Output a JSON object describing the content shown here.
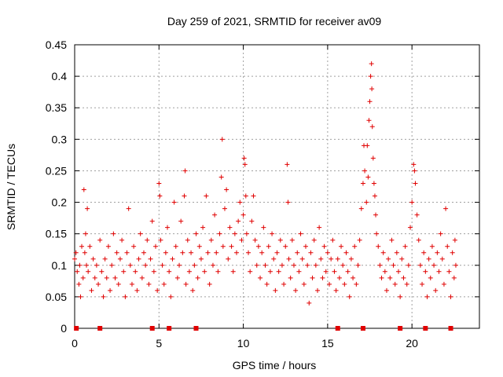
{
  "chart_data": {
    "type": "scatter",
    "title": "Day 259 of 2021, SRMTID for receiver av09",
    "xlabel": "GPS time / hours",
    "ylabel": "SRMTID / TECUs",
    "xlim": [
      0,
      24
    ],
    "ylim": [
      0,
      0.45
    ],
    "xticks": [
      "0",
      "5",
      "10",
      "15",
      "20"
    ],
    "xtick_values": [
      0,
      5,
      10,
      15,
      20
    ],
    "yticks": [
      "0",
      "0.05",
      "0.1",
      "0.15",
      "0.2",
      "0.25",
      "0.3",
      "0.35",
      "0.4",
      "0.45"
    ],
    "ytick_values": [
      0,
      0.05,
      0.1,
      0.15,
      0.2,
      0.25,
      0.3,
      0.35,
      0.4,
      0.45
    ],
    "grid": true,
    "marker": "+",
    "color": "#e00000",
    "zero_markers_x": [
      0.1,
      1.5,
      4.6,
      5.6,
      7.2,
      15.6,
      17.1,
      19.3,
      20.8,
      22.3
    ],
    "series": [
      {
        "name": "SRMTID",
        "points": [
          [
            0.0,
            0.11
          ],
          [
            0.08,
            0.12
          ],
          [
            0.15,
            0.09
          ],
          [
            0.25,
            0.07
          ],
          [
            0.3,
            0.1
          ],
          [
            0.35,
            0.05
          ],
          [
            0.42,
            0.13
          ],
          [
            0.5,
            0.08
          ],
          [
            0.55,
            0.22
          ],
          [
            0.6,
            0.12
          ],
          [
            0.65,
            0.15
          ],
          [
            0.7,
            0.1
          ],
          [
            0.75,
            0.19
          ],
          [
            0.8,
            0.09
          ],
          [
            0.9,
            0.13
          ],
          [
            1.0,
            0.06
          ],
          [
            1.1,
            0.11
          ],
          [
            1.2,
            0.08
          ],
          [
            1.3,
            0.1
          ],
          [
            1.4,
            0.07
          ],
          [
            1.5,
            0.14
          ],
          [
            1.6,
            0.09
          ],
          [
            1.7,
            0.05
          ],
          [
            1.8,
            0.11
          ],
          [
            1.9,
            0.08
          ],
          [
            2.0,
            0.13
          ],
          [
            2.1,
            0.06
          ],
          [
            2.2,
            0.1
          ],
          [
            2.3,
            0.15
          ],
          [
            2.4,
            0.08
          ],
          [
            2.5,
            0.12
          ],
          [
            2.6,
            0.07
          ],
          [
            2.7,
            0.11
          ],
          [
            2.8,
            0.14
          ],
          [
            2.9,
            0.09
          ],
          [
            3.0,
            0.05
          ],
          [
            3.1,
            0.12
          ],
          [
            3.2,
            0.19
          ],
          [
            3.3,
            0.1
          ],
          [
            3.4,
            0.07
          ],
          [
            3.5,
            0.13
          ],
          [
            3.6,
            0.09
          ],
          [
            3.7,
            0.06
          ],
          [
            3.8,
            0.11
          ],
          [
            3.9,
            0.15
          ],
          [
            4.0,
            0.08
          ],
          [
            4.1,
            0.12
          ],
          [
            4.2,
            0.1
          ],
          [
            4.3,
            0.14
          ],
          [
            4.4,
            0.07
          ],
          [
            4.5,
            0.11
          ],
          [
            4.6,
            0.17
          ],
          [
            4.7,
            0.09
          ],
          [
            4.8,
            0.13
          ],
          [
            4.9,
            0.06
          ],
          [
            5.0,
            0.23
          ],
          [
            5.05,
            0.21
          ],
          [
            5.1,
            0.14
          ],
          [
            5.2,
            0.1
          ],
          [
            5.3,
            0.07
          ],
          [
            5.4,
            0.12
          ],
          [
            5.5,
            0.16
          ],
          [
            5.6,
            0.09
          ],
          [
            5.7,
            0.05
          ],
          [
            5.8,
            0.11
          ],
          [
            5.9,
            0.2
          ],
          [
            6.0,
            0.13
          ],
          [
            6.1,
            0.08
          ],
          [
            6.2,
            0.1
          ],
          [
            6.3,
            0.17
          ],
          [
            6.4,
            0.12
          ],
          [
            6.5,
            0.21
          ],
          [
            6.55,
            0.25
          ],
          [
            6.6,
            0.07
          ],
          [
            6.7,
            0.14
          ],
          [
            6.8,
            0.09
          ],
          [
            6.9,
            0.12
          ],
          [
            7.0,
            0.06
          ],
          [
            7.1,
            0.1
          ],
          [
            7.2,
            0.15
          ],
          [
            7.3,
            0.08
          ],
          [
            7.4,
            0.13
          ],
          [
            7.5,
            0.11
          ],
          [
            7.6,
            0.16
          ],
          [
            7.7,
            0.09
          ],
          [
            7.8,
            0.21
          ],
          [
            7.9,
            0.12
          ],
          [
            8.0,
            0.07
          ],
          [
            8.1,
            0.14
          ],
          [
            8.2,
            0.1
          ],
          [
            8.3,
            0.18
          ],
          [
            8.4,
            0.12
          ],
          [
            8.5,
            0.09
          ],
          [
            8.6,
            0.15
          ],
          [
            8.7,
            0.24
          ],
          [
            8.75,
            0.3
          ],
          [
            8.8,
            0.13
          ],
          [
            8.9,
            0.19
          ],
          [
            9.0,
            0.22
          ],
          [
            9.1,
            0.11
          ],
          [
            9.2,
            0.16
          ],
          [
            9.3,
            0.13
          ],
          [
            9.4,
            0.09
          ],
          [
            9.5,
            0.15
          ],
          [
            9.6,
            0.12
          ],
          [
            9.7,
            0.17
          ],
          [
            9.8,
            0.2
          ],
          [
            9.9,
            0.14
          ],
          [
            10.0,
            0.18
          ],
          [
            10.05,
            0.27
          ],
          [
            10.1,
            0.26
          ],
          [
            10.15,
            0.21
          ],
          [
            10.2,
            0.15
          ],
          [
            10.3,
            0.12
          ],
          [
            10.4,
            0.09
          ],
          [
            10.5,
            0.17
          ],
          [
            10.6,
            0.21
          ],
          [
            10.7,
            0.14
          ],
          [
            10.8,
            0.1
          ],
          [
            10.9,
            0.13
          ],
          [
            11.0,
            0.08
          ],
          [
            11.1,
            0.12
          ],
          [
            11.2,
            0.16
          ],
          [
            11.3,
            0.1
          ],
          [
            11.4,
            0.07
          ],
          [
            11.5,
            0.13
          ],
          [
            11.6,
            0.09
          ],
          [
            11.7,
            0.15
          ],
          [
            11.8,
            0.11
          ],
          [
            11.9,
            0.06
          ],
          [
            12.0,
            0.12
          ],
          [
            12.1,
            0.09
          ],
          [
            12.2,
            0.14
          ],
          [
            12.3,
            0.1
          ],
          [
            12.4,
            0.07
          ],
          [
            12.5,
            0.13
          ],
          [
            12.6,
            0.26
          ],
          [
            12.65,
            0.2
          ],
          [
            12.7,
            0.11
          ],
          [
            12.8,
            0.08
          ],
          [
            12.9,
            0.14
          ],
          [
            13.0,
            0.1
          ],
          [
            13.1,
            0.06
          ],
          [
            13.2,
            0.12
          ],
          [
            13.3,
            0.09
          ],
          [
            13.4,
            0.15
          ],
          [
            13.5,
            0.11
          ],
          [
            13.6,
            0.07
          ],
          [
            13.7,
            0.13
          ],
          [
            13.8,
            0.1
          ],
          [
            13.9,
            0.04
          ],
          [
            14.0,
            0.12
          ],
          [
            14.1,
            0.08
          ],
          [
            14.2,
            0.14
          ],
          [
            14.3,
            0.1
          ],
          [
            14.4,
            0.06
          ],
          [
            14.5,
            0.16
          ],
          [
            14.6,
            0.11
          ],
          [
            14.7,
            0.08
          ],
          [
            14.8,
            0.13
          ],
          [
            14.9,
            0.09
          ],
          [
            15.0,
            0.12
          ],
          [
            15.1,
            0.07
          ],
          [
            15.2,
            0.11
          ],
          [
            15.3,
            0.14
          ],
          [
            15.4,
            0.09
          ],
          [
            15.5,
            0.06
          ],
          [
            15.6,
            0.11
          ],
          [
            15.7,
            0.08
          ],
          [
            15.8,
            0.13
          ],
          [
            15.9,
            0.1
          ],
          [
            16.0,
            0.07
          ],
          [
            16.1,
            0.12
          ],
          [
            16.2,
            0.09
          ],
          [
            16.3,
            0.05
          ],
          [
            16.4,
            0.11
          ],
          [
            16.5,
            0.08
          ],
          [
            16.6,
            0.13
          ],
          [
            16.7,
            0.07
          ],
          [
            16.8,
            0.1
          ],
          [
            16.9,
            0.14
          ],
          [
            17.0,
            0.19
          ],
          [
            17.1,
            0.23
          ],
          [
            17.15,
            0.29
          ],
          [
            17.2,
            0.25
          ],
          [
            17.3,
            0.2
          ],
          [
            17.35,
            0.29
          ],
          [
            17.4,
            0.24
          ],
          [
            17.45,
            0.33
          ],
          [
            17.5,
            0.36
          ],
          [
            17.55,
            0.4
          ],
          [
            17.6,
            0.42
          ],
          [
            17.62,
            0.38
          ],
          [
            17.65,
            0.32
          ],
          [
            17.7,
            0.27
          ],
          [
            17.75,
            0.23
          ],
          [
            17.8,
            0.21
          ],
          [
            17.85,
            0.18
          ],
          [
            17.9,
            0.15
          ],
          [
            18.0,
            0.13
          ],
          [
            18.1,
            0.1
          ],
          [
            18.2,
            0.08
          ],
          [
            18.3,
            0.12
          ],
          [
            18.4,
            0.09
          ],
          [
            18.5,
            0.06
          ],
          [
            18.6,
            0.11
          ],
          [
            18.7,
            0.08
          ],
          [
            18.8,
            0.14
          ],
          [
            18.9,
            0.1
          ],
          [
            19.0,
            0.07
          ],
          [
            19.1,
            0.12
          ],
          [
            19.2,
            0.09
          ],
          [
            19.3,
            0.05
          ],
          [
            19.4,
            0.11
          ],
          [
            19.5,
            0.08
          ],
          [
            19.6,
            0.13
          ],
          [
            19.7,
            0.07
          ],
          [
            19.8,
            0.1
          ],
          [
            19.9,
            0.16
          ],
          [
            20.0,
            0.2
          ],
          [
            20.1,
            0.26
          ],
          [
            20.15,
            0.25
          ],
          [
            20.2,
            0.23
          ],
          [
            20.3,
            0.18
          ],
          [
            20.4,
            0.14
          ],
          [
            20.5,
            0.1
          ],
          [
            20.6,
            0.07
          ],
          [
            20.7,
            0.12
          ],
          [
            20.8,
            0.09
          ],
          [
            20.9,
            0.05
          ],
          [
            21.0,
            0.11
          ],
          [
            21.1,
            0.08
          ],
          [
            21.2,
            0.13
          ],
          [
            21.3,
            0.1
          ],
          [
            21.4,
            0.06
          ],
          [
            21.5,
            0.12
          ],
          [
            21.6,
            0.09
          ],
          [
            21.7,
            0.15
          ],
          [
            21.8,
            0.11
          ],
          [
            21.9,
            0.07
          ],
          [
            22.0,
            0.19
          ],
          [
            22.1,
            0.13
          ],
          [
            22.2,
            0.09
          ],
          [
            22.3,
            0.05
          ],
          [
            22.4,
            0.12
          ],
          [
            22.5,
            0.08
          ],
          [
            22.55,
            0.14
          ],
          [
            22.6,
            0.1
          ]
        ]
      }
    ]
  }
}
